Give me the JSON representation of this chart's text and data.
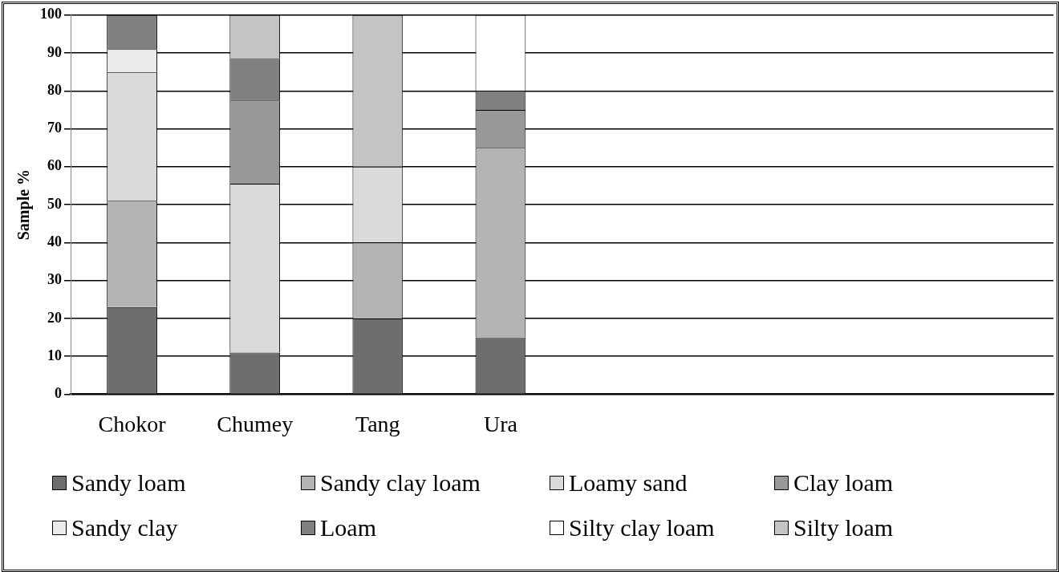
{
  "chart_data": {
    "type": "bar",
    "stacked": true,
    "ylabel": "Sample %",
    "categories": [
      "Chokor",
      "Chumey",
      "Tang",
      "Ura",
      null,
      null,
      null,
      null
    ],
    "ylim": [
      0,
      100
    ],
    "yticks": [
      0,
      10,
      20,
      30,
      40,
      50,
      60,
      70,
      80,
      90,
      100
    ],
    "grid": "y",
    "legend": "bottom",
    "series": [
      {
        "name": "Sandy loam",
        "color": "#6e6e6e",
        "values": [
          23,
          11,
          20,
          15,
          null,
          null,
          null,
          null
        ]
      },
      {
        "name": "Sandy clay loam",
        "color": "#b4b4b4",
        "values": [
          28,
          0,
          20,
          50,
          null,
          null,
          null,
          null
        ]
      },
      {
        "name": "Loamy sand",
        "color": "#dadada",
        "values": [
          34,
          44.5,
          20,
          0,
          null,
          null,
          null,
          null
        ]
      },
      {
        "name": "Clay loam",
        "color": "#989898",
        "values": [
          0,
          22,
          0,
          10,
          null,
          null,
          null,
          null
        ]
      },
      {
        "name": "Sandy clay",
        "color": "#ebebeb",
        "values": [
          6,
          0,
          0,
          0,
          null,
          null,
          null,
          null
        ]
      },
      {
        "name": "Loam",
        "color": "#808080",
        "values": [
          9,
          11,
          0,
          5,
          null,
          null,
          null,
          null
        ]
      },
      {
        "name": "Silty clay loam",
        "color": "#ffffff",
        "values": [
          0,
          0,
          0,
          20,
          null,
          null,
          null,
          null
        ]
      },
      {
        "name": "Silty loam",
        "color": "#c4c4c4",
        "values": [
          0,
          11.5,
          40,
          0,
          null,
          null,
          null,
          null
        ]
      }
    ]
  }
}
